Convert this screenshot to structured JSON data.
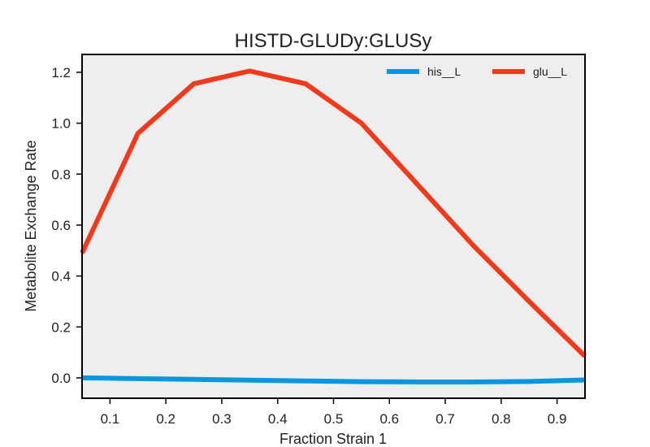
{
  "chart_data": {
    "type": "line",
    "title": "HISTD-GLUDy:GLUSy",
    "xlabel": "Fraction Strain 1",
    "ylabel": "Metabolite Exchange Rate",
    "xlim": [
      0.05,
      0.95
    ],
    "ylim": [
      -0.08,
      1.27
    ],
    "xticks": [
      "0.1",
      "0.2",
      "0.3",
      "0.4",
      "0.5",
      "0.6",
      "0.7",
      "0.8",
      "0.9"
    ],
    "yticks": [
      "0.0",
      "0.2",
      "0.4",
      "0.6",
      "0.8",
      "1.0",
      "1.2"
    ],
    "grid": false,
    "legend_position": "top-right",
    "x": [
      0.05,
      0.15,
      0.25,
      0.35,
      0.45,
      0.55,
      0.65,
      0.75,
      0.85,
      0.95
    ],
    "series": [
      {
        "name": "his__L",
        "color": "#0797e1",
        "values": [
          0.0,
          -0.003,
          -0.006,
          -0.009,
          -0.012,
          -0.015,
          -0.016,
          -0.016,
          -0.014,
          -0.008
        ]
      },
      {
        "name": "glu__L",
        "color": "#f1391b",
        "values": [
          0.49,
          0.96,
          1.155,
          1.205,
          1.155,
          1.0,
          0.76,
          0.52,
          0.3,
          0.085
        ]
      }
    ]
  }
}
